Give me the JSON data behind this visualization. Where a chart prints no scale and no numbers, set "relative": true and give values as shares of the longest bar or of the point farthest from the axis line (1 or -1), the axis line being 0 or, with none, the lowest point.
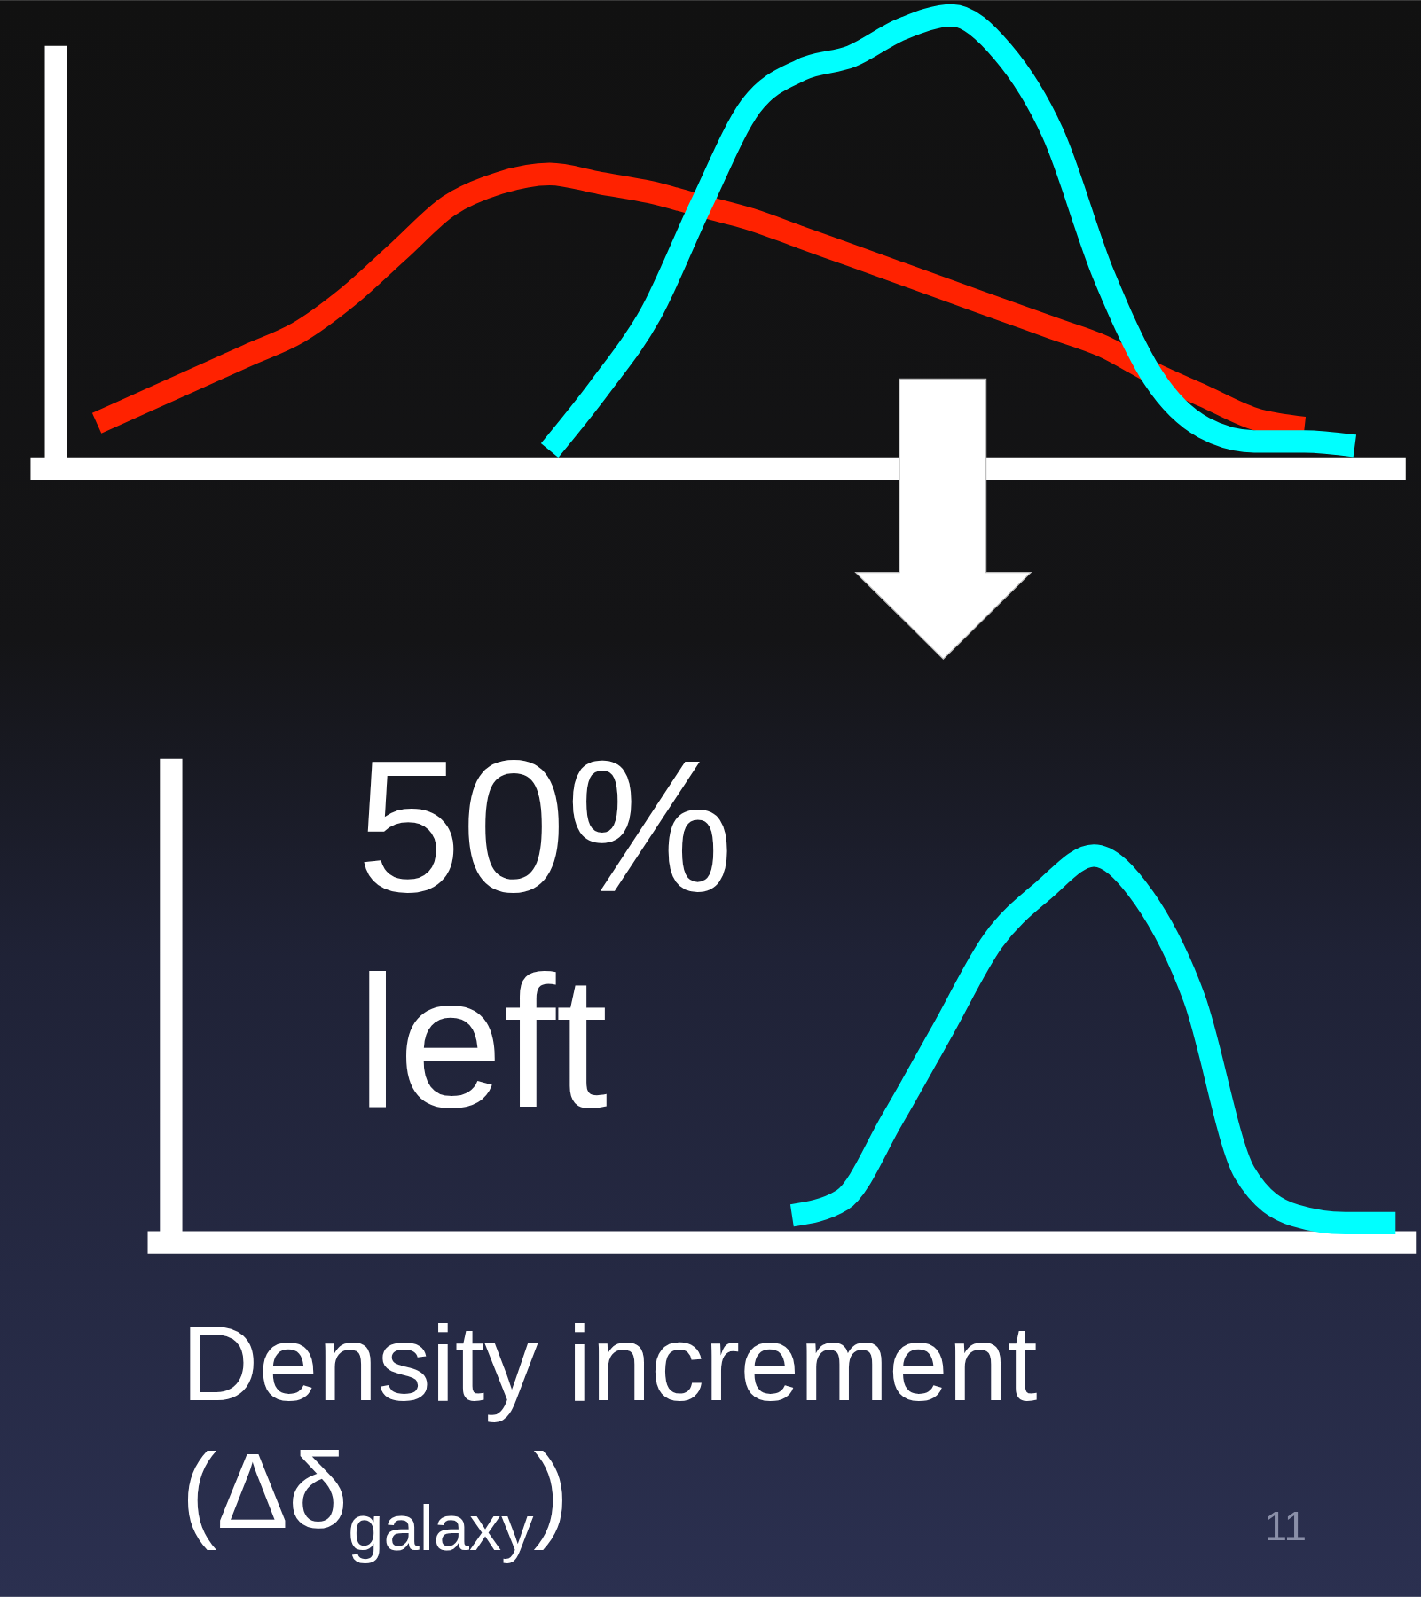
{
  "chart_data": [
    {
      "type": "line",
      "relative": true,
      "categories": [
        null,
        null,
        null,
        null,
        null,
        null,
        null,
        null,
        null,
        null,
        null,
        null,
        null,
        null,
        null,
        null,
        null,
        null,
        null,
        null,
        null,
        null,
        null,
        null,
        null,
        null
      ],
      "series": [
        {
          "color": "#ff2200",
          "values": [
            0.1,
            0.15,
            0.2,
            0.25,
            0.3,
            0.38,
            0.48,
            0.58,
            0.63,
            0.65,
            0.63,
            0.61,
            0.58,
            0.55,
            0.51,
            0.47,
            0.43,
            0.39,
            0.35,
            0.31,
            0.27,
            0.21,
            0.16,
            0.11,
            0.09,
            null
          ]
        },
        {
          "color": "#00ffff",
          "values": [
            null,
            null,
            null,
            null,
            null,
            null,
            null,
            null,
            null,
            0.04,
            0.18,
            0.34,
            0.58,
            0.8,
            0.88,
            0.91,
            0.97,
            1.0,
            0.92,
            0.74,
            0.43,
            0.2,
            0.09,
            0.06,
            0.06,
            0.05
          ]
        }
      ]
    },
    {
      "type": "line",
      "relative": true,
      "categories": [
        null,
        null,
        null,
        null,
        null,
        null,
        null,
        null,
        null,
        null,
        null,
        null,
        null,
        null,
        null,
        null,
        null,
        null,
        null,
        null,
        null,
        null,
        null,
        null,
        null
      ],
      "xlabel": "Density increment (Δδ$_{galaxy}$)",
      "annotations": [
        "50% left",
        "11"
      ],
      "series": [
        {
          "color": "#00ffff",
          "values": [
            null,
            null,
            null,
            null,
            null,
            null,
            null,
            null,
            null,
            null,
            null,
            null,
            0.07,
            0.11,
            0.32,
            0.55,
            0.78,
            0.91,
            1.0,
            0.89,
            0.63,
            0.18,
            0.07,
            0.05,
            0.05
          ]
        }
      ]
    }
  ]
}
